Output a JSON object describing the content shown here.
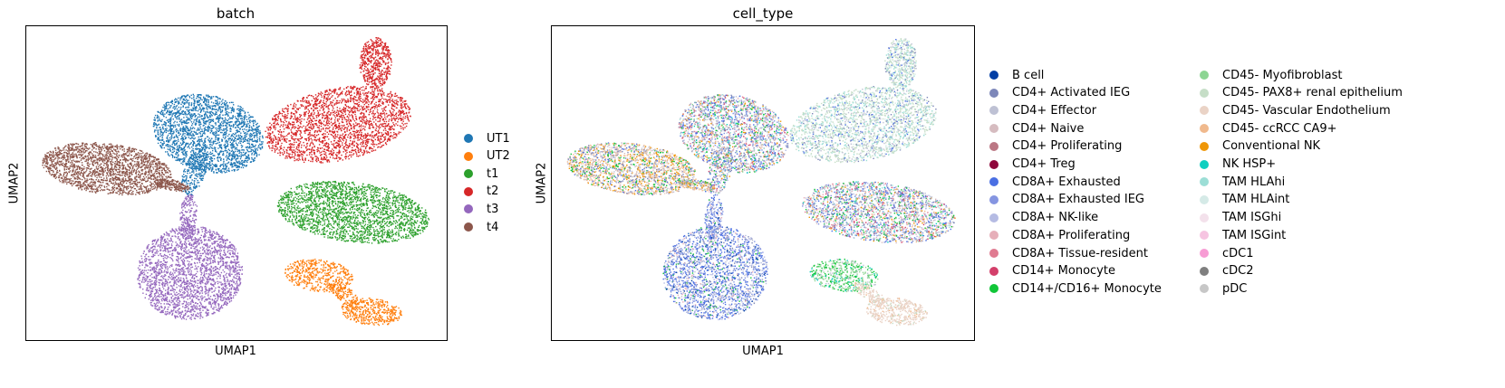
{
  "chart_data": [
    {
      "type": "scatter",
      "title": "batch",
      "xlabel": "UMAP1",
      "ylabel": "UMAP2",
      "grid": false,
      "legend_placement": "right",
      "series": [
        {
          "name": "UT1",
          "color": "#1f77b4"
        },
        {
          "name": "UT2",
          "color": "#ff7f0e"
        },
        {
          "name": "t1",
          "color": "#2ca02c"
        },
        {
          "name": "t2",
          "color": "#d62728"
        },
        {
          "name": "t3",
          "color": "#9467bd"
        },
        {
          "name": "t4",
          "color": "#8c564b"
        }
      ]
    },
    {
      "type": "scatter",
      "title": "cell_type",
      "xlabel": "UMAP1",
      "ylabel": "UMAP2",
      "grid": false,
      "legend_placement": "right",
      "series": [
        {
          "name": "B cell",
          "color": "#023fa5"
        },
        {
          "name": "CD4+ Activated IEG",
          "color": "#7d87b9"
        },
        {
          "name": "CD4+ Effector",
          "color": "#bec1d4"
        },
        {
          "name": "CD4+ Naive",
          "color": "#d6bcc0"
        },
        {
          "name": "CD4+ Proliferating",
          "color": "#bb7784"
        },
        {
          "name": "CD4+ Treg",
          "color": "#8e063b"
        },
        {
          "name": "CD8A+ Exhausted",
          "color": "#4a6fe3"
        },
        {
          "name": "CD8A+ Exhausted IEG",
          "color": "#8595e1"
        },
        {
          "name": "CD8A+ NK-like",
          "color": "#b5bbe3"
        },
        {
          "name": "CD8A+ Proliferating",
          "color": "#e6afb9"
        },
        {
          "name": "CD8A+ Tissue-resident",
          "color": "#e07b91"
        },
        {
          "name": "CD14+ Monocyte",
          "color": "#d33f6a"
        },
        {
          "name": "CD14+/CD16+ Monocyte",
          "color": "#11c638"
        },
        {
          "name": "CD45- Myofibroblast",
          "color": "#8dd593"
        },
        {
          "name": "CD45- PAX8+ renal epithelium",
          "color": "#c6dec7"
        },
        {
          "name": "CD45- Vascular Endothelium",
          "color": "#ead3c6"
        },
        {
          "name": "CD45- ccRCC CA9+",
          "color": "#f0b98d"
        },
        {
          "name": "Conventional NK",
          "color": "#ef9708"
        },
        {
          "name": "NK HSP+",
          "color": "#0fcfc0"
        },
        {
          "name": "TAM HLAhi",
          "color": "#9cded6"
        },
        {
          "name": "TAM HLAint",
          "color": "#d5eae7"
        },
        {
          "name": "TAM ISGhi",
          "color": "#f3e1eb"
        },
        {
          "name": "TAM ISGint",
          "color": "#f6c4e1"
        },
        {
          "name": "cDC1",
          "color": "#f79cd4"
        },
        {
          "name": "cDC2",
          "color": "#7f7f7f"
        },
        {
          "name": "pDC",
          "color": "#c7c7c7"
        }
      ]
    }
  ]
}
